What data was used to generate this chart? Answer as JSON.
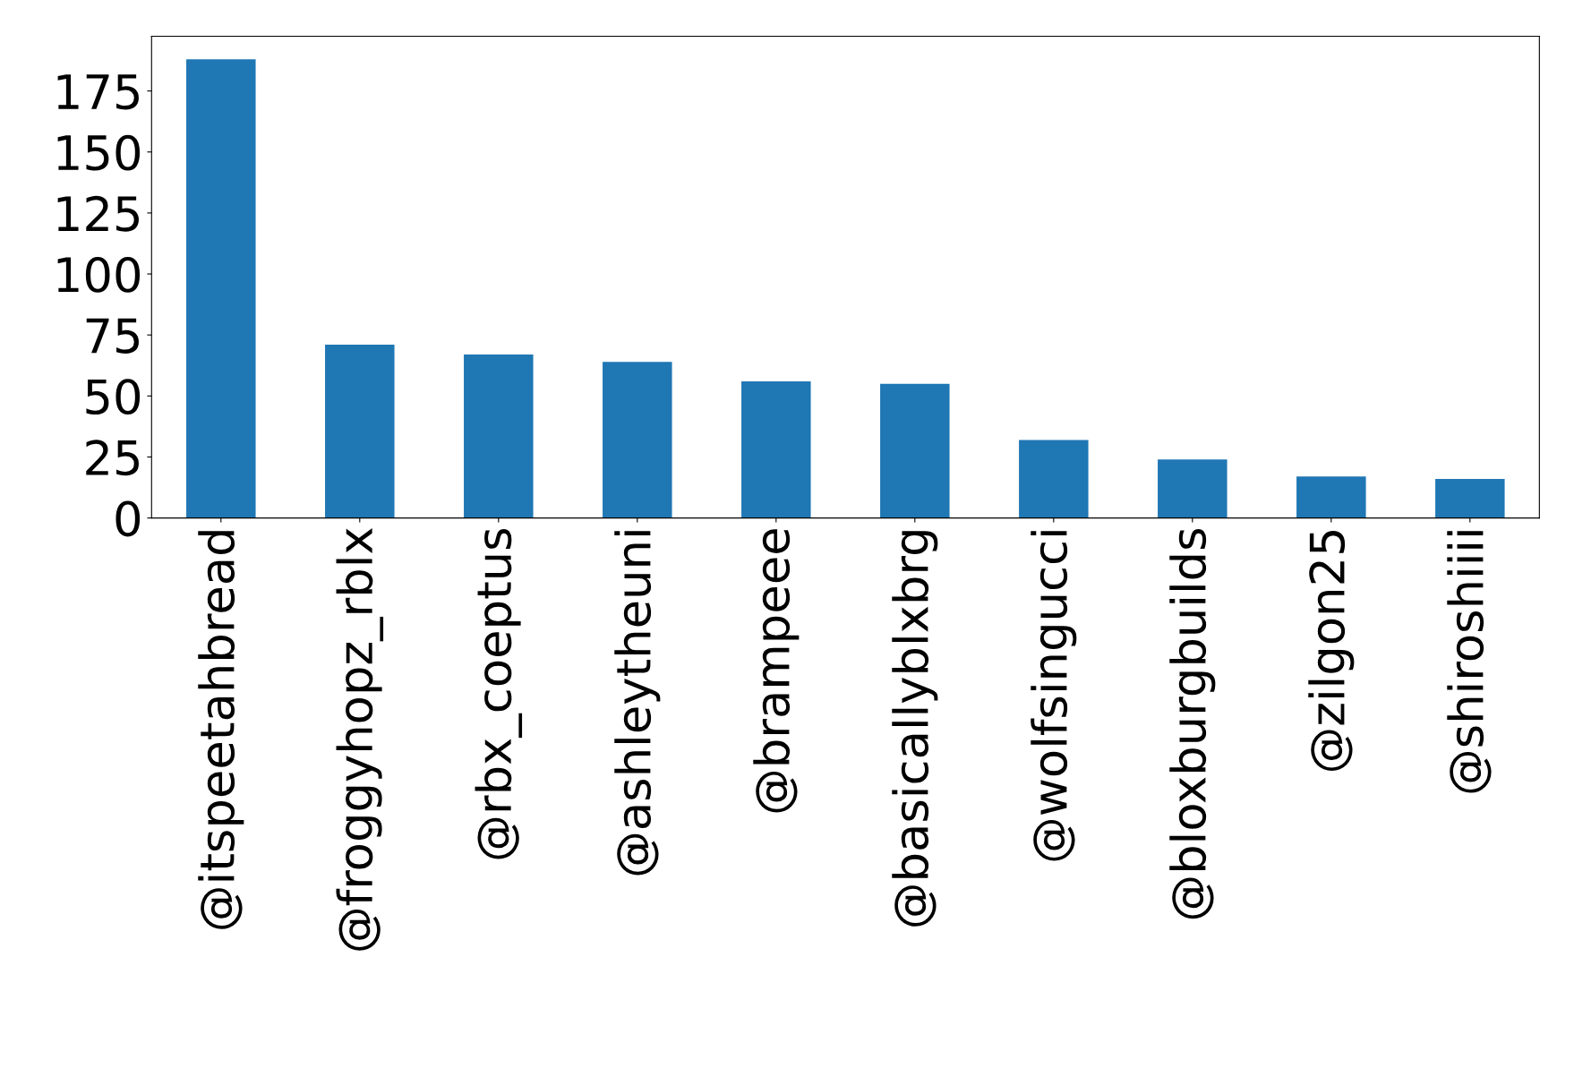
{
  "chart_data": {
    "type": "bar",
    "categories": [
      "@itspeetahbread",
      "@froggyhopz_rblx",
      "@rbx_coeptus",
      "@ashleytheuni",
      "@brampeee",
      "@basicallyblxbrg",
      "@wolfsingucci",
      "@bloxburgbuilds",
      "@zilgon25",
      "@shiroshiiii"
    ],
    "values": [
      188,
      71,
      67,
      64,
      56,
      55,
      32,
      24,
      17,
      16
    ],
    "color": "#1f77b4",
    "ylim": [
      0,
      197.4
    ],
    "yticks": [
      0,
      25,
      50,
      75,
      100,
      125,
      150,
      175
    ],
    "grid": false,
    "legend": false
  }
}
